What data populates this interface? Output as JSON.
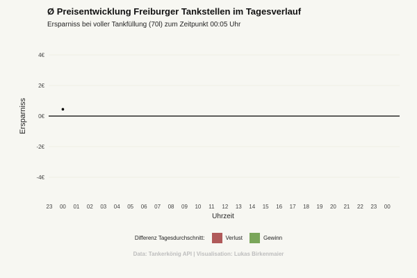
{
  "title": "Ø Preisentwicklung Freiburger Tankstellen im Tagesverlauf",
  "subtitle": "Ersparniss bei voller Tankfüllung (70l) zum Zeitpunkt 00:05 Uhr",
  "legend_title": "Differenz Tagesdurchschnitt:",
  "legend_items": [
    {
      "label": "Verlust",
      "color": "#b05a5a"
    },
    {
      "label": "Gewinn",
      "color": "#7aa65a"
    }
  ],
  "caption": "Data: Tankerkönig API | Visualisation: Lukas Birkenmaier",
  "chart_data": {
    "type": "scatter",
    "xlabel": "Uhrzeit",
    "ylabel": "Ersparniss",
    "x_categories": [
      "23",
      "00",
      "01",
      "02",
      "03",
      "04",
      "05",
      "06",
      "07",
      "08",
      "09",
      "10",
      "11",
      "12",
      "13",
      "14",
      "15",
      "16",
      "17",
      "18",
      "19",
      "20",
      "21",
      "22",
      "23",
      "00"
    ],
    "y_ticks": [
      "4€",
      "2€",
      "0€",
      "-2€",
      "-4€"
    ],
    "y_tick_values": [
      4,
      2,
      0,
      -2,
      -4
    ],
    "ylim": [
      -5,
      5
    ],
    "grid": true,
    "points": [
      {
        "x": "00",
        "x_index": 1,
        "y": 0.4
      }
    ],
    "zero_line": 0
  }
}
